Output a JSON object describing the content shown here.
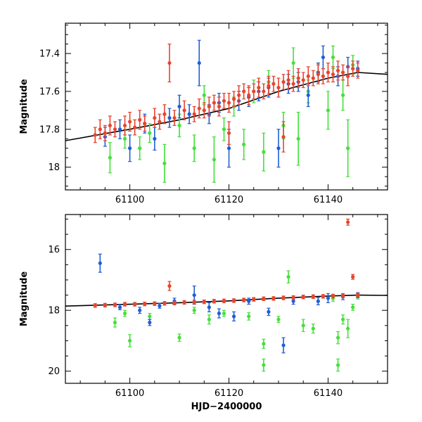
{
  "chart_data": [
    {
      "type": "scatter",
      "panel": "top",
      "title": "",
      "xlabel": "",
      "ylabel": "Magnitude",
      "xlim": [
        61087,
        61152
      ],
      "ylim": [
        18.12,
        17.24
      ],
      "x_ticks": [
        61100,
        61120,
        61140
      ],
      "x_tick_labels": [
        "61100",
        "61120",
        "61140"
      ],
      "y_ticks": [
        17.4,
        17.6,
        17.8,
        18.0
      ],
      "y_tick_labels": [
        "17.4",
        "17.6",
        "17.8",
        "18"
      ],
      "colors": {
        "red": "#e8442e",
        "blue": "#1f5fd6",
        "green": "#44e03a",
        "line": "#000000"
      },
      "model_line": {
        "x": [
          61087,
          61100,
          61110,
          61120,
          61130,
          61140,
          61146,
          61152
        ],
        "y": [
          17.86,
          17.8,
          17.75,
          17.69,
          17.6,
          17.53,
          17.5,
          17.51
        ]
      },
      "series": [
        {
          "name": "green",
          "color": "#44e03a",
          "points": [
            [
              61096,
              17.95,
              0.08
            ],
            [
              61099,
              17.85,
              0.05
            ],
            [
              61102,
              17.9,
              0.06
            ],
            [
              61104,
              17.82,
              0.05
            ],
            [
              61107,
              17.98,
              0.1
            ],
            [
              61110,
              17.78,
              0.06
            ],
            [
              61113,
              17.9,
              0.07
            ],
            [
              61115,
              17.62,
              0.05
            ],
            [
              61117,
              17.96,
              0.12
            ],
            [
              61119,
              17.8,
              0.06
            ],
            [
              61121,
              17.68,
              0.05
            ],
            [
              61123,
              17.88,
              0.08
            ],
            [
              61125,
              17.6,
              0.06
            ],
            [
              61127,
              17.92,
              0.1
            ],
            [
              61128,
              17.55,
              0.06
            ],
            [
              61131,
              17.78,
              0.07
            ],
            [
              61133,
              17.45,
              0.08
            ],
            [
              61134,
              17.85,
              0.14
            ],
            [
              61136,
              17.6,
              0.06
            ],
            [
              61138,
              17.5,
              0.05
            ],
            [
              61140,
              17.7,
              0.1
            ],
            [
              61141,
              17.42,
              0.06
            ],
            [
              61143,
              17.62,
              0.08
            ],
            [
              61144,
              17.9,
              0.15
            ],
            [
              61145,
              17.46,
              0.05
            ]
          ]
        },
        {
          "name": "blue",
          "color": "#1f5fd6",
          "points": [
            [
              61095,
              17.84,
              0.05
            ],
            [
              61098,
              17.8,
              0.05
            ],
            [
              61100,
              17.9,
              0.07
            ],
            [
              61103,
              17.77,
              0.05
            ],
            [
              61105,
              17.85,
              0.06
            ],
            [
              61108,
              17.74,
              0.05
            ],
            [
              61110,
              17.68,
              0.06
            ],
            [
              61112,
              17.72,
              0.05
            ],
            [
              61114,
              17.45,
              0.12
            ],
            [
              61116,
              17.72,
              0.05
            ],
            [
              61118,
              17.66,
              0.05
            ],
            [
              61120,
              17.9,
              0.1
            ],
            [
              61122,
              17.65,
              0.05
            ],
            [
              61124,
              17.63,
              0.05
            ],
            [
              61126,
              17.6,
              0.05
            ],
            [
              61128,
              17.58,
              0.05
            ],
            [
              61130,
              17.9,
              0.1
            ],
            [
              61132,
              17.56,
              0.05
            ],
            [
              61134,
              17.55,
              0.05
            ],
            [
              61136,
              17.62,
              0.06
            ],
            [
              61138,
              17.5,
              0.05
            ],
            [
              61139,
              17.42,
              0.06
            ],
            [
              61142,
              17.52,
              0.05
            ],
            [
              61144,
              17.47,
              0.05
            ],
            [
              61146,
              17.48,
              0.04
            ]
          ]
        },
        {
          "name": "red",
          "color": "#e8442e",
          "points": [
            [
              61093,
              17.83,
              0.04
            ],
            [
              61094,
              17.8,
              0.05
            ],
            [
              61095,
              17.82,
              0.04
            ],
            [
              61096,
              17.78,
              0.05
            ],
            [
              61097,
              17.8,
              0.04
            ],
            [
              61099,
              17.78,
              0.05
            ],
            [
              61100,
              17.76,
              0.05
            ],
            [
              61101,
              17.79,
              0.04
            ],
            [
              61102,
              17.75,
              0.05
            ],
            [
              61103,
              17.77,
              0.04
            ],
            [
              61105,
              17.74,
              0.05
            ],
            [
              61106,
              17.76,
              0.04
            ],
            [
              61107,
              17.72,
              0.05
            ],
            [
              61108,
              17.45,
              0.1
            ],
            [
              61109,
              17.74,
              0.04
            ],
            [
              61111,
              17.7,
              0.05
            ],
            [
              61113,
              17.72,
              0.04
            ],
            [
              61114,
              17.69,
              0.05
            ],
            [
              61115,
              17.7,
              0.04
            ],
            [
              61116,
              17.68,
              0.05
            ],
            [
              61117,
              17.66,
              0.04
            ],
            [
              61118,
              17.68,
              0.05
            ],
            [
              61119,
              17.65,
              0.04
            ],
            [
              61120,
              17.66,
              0.05
            ],
            [
              61121,
              17.64,
              0.04
            ],
            [
              61122,
              17.62,
              0.05
            ],
            [
              61123,
              17.6,
              0.04
            ],
            [
              61124,
              17.62,
              0.05
            ],
            [
              61125,
              17.6,
              0.04
            ],
            [
              61126,
              17.58,
              0.05
            ],
            [
              61127,
              17.6,
              0.04
            ],
            [
              61128,
              17.57,
              0.05
            ],
            [
              61129,
              17.56,
              0.04
            ],
            [
              61130,
              17.58,
              0.05
            ],
            [
              61131,
              17.55,
              0.04
            ],
            [
              61132,
              17.54,
              0.05
            ],
            [
              61133,
              17.56,
              0.04
            ],
            [
              61134,
              17.53,
              0.05
            ],
            [
              61135,
              17.54,
              0.04
            ],
            [
              61136,
              17.52,
              0.05
            ],
            [
              61137,
              17.53,
              0.04
            ],
            [
              61138,
              17.51,
              0.05
            ],
            [
              61139,
              17.52,
              0.04
            ],
            [
              61140,
              17.5,
              0.05
            ],
            [
              61141,
              17.51,
              0.04
            ],
            [
              61142,
              17.49,
              0.05
            ],
            [
              61143,
              17.5,
              0.04
            ],
            [
              61144,
              17.52,
              0.05
            ],
            [
              61145,
              17.48,
              0.04
            ],
            [
              61146,
              17.49,
              0.04
            ],
            [
              61120,
              17.82,
              0.06
            ],
            [
              61131,
              17.84,
              0.08
            ]
          ]
        }
      ]
    },
    {
      "type": "scatter",
      "panel": "bottom",
      "title": "",
      "xlabel": "HJD−2400000",
      "ylabel": "Magnitude",
      "xlim": [
        61087,
        61152
      ],
      "ylim": [
        20.4,
        14.85
      ],
      "x_ticks": [
        61100,
        61120,
        61140
      ],
      "x_tick_labels": [
        "61100",
        "61120",
        "61140"
      ],
      "y_ticks": [
        16,
        18,
        20
      ],
      "y_tick_labels": [
        "16",
        "18",
        "20"
      ],
      "colors": {
        "red": "#e8442e",
        "blue": "#1f5fd6",
        "green": "#44e03a",
        "line": "#000000"
      },
      "model_line": {
        "x": [
          61087,
          61100,
          61110,
          61120,
          61130,
          61140,
          61146,
          61152
        ],
        "y": [
          17.86,
          17.8,
          17.75,
          17.69,
          17.6,
          17.53,
          17.5,
          17.51
        ]
      },
      "series": [
        {
          "name": "green",
          "color": "#44e03a",
          "points": [
            [
              61097,
              18.4,
              0.15
            ],
            [
              61099,
              18.1,
              0.1
            ],
            [
              61100,
              19.0,
              0.2
            ],
            [
              61104,
              18.2,
              0.1
            ],
            [
              61110,
              18.9,
              0.12
            ],
            [
              61113,
              18.0,
              0.1
            ],
            [
              61116,
              18.3,
              0.15
            ],
            [
              61119,
              18.1,
              0.1
            ],
            [
              61124,
              18.2,
              0.12
            ],
            [
              61127,
              19.8,
              0.2
            ],
            [
              61127,
              19.1,
              0.15
            ],
            [
              61130,
              18.3,
              0.1
            ],
            [
              61132,
              16.9,
              0.2
            ],
            [
              61135,
              18.5,
              0.2
            ],
            [
              61137,
              18.6,
              0.15
            ],
            [
              61141,
              17.6,
              0.1
            ],
            [
              61142,
              18.9,
              0.2
            ],
            [
              61142,
              19.8,
              0.2
            ],
            [
              61143,
              18.3,
              0.15
            ],
            [
              61144,
              18.6,
              0.3
            ],
            [
              61145,
              17.9,
              0.1
            ],
            [
              61146,
              17.55,
              0.08
            ]
          ]
        },
        {
          "name": "blue",
          "color": "#1f5fd6",
          "points": [
            [
              61094,
              16.45,
              0.3
            ],
            [
              61098,
              17.9,
              0.08
            ],
            [
              61102,
              18.0,
              0.1
            ],
            [
              61104,
              18.4,
              0.1
            ],
            [
              61106,
              17.85,
              0.08
            ],
            [
              61109,
              17.7,
              0.1
            ],
            [
              61113,
              17.5,
              0.3
            ],
            [
              61116,
              17.9,
              0.15
            ],
            [
              61118,
              18.1,
              0.15
            ],
            [
              61121,
              18.2,
              0.15
            ],
            [
              61124,
              17.7,
              0.1
            ],
            [
              61128,
              18.05,
              0.12
            ],
            [
              61131,
              19.15,
              0.25
            ],
            [
              61133,
              17.7,
              0.1
            ],
            [
              61138,
              17.7,
              0.12
            ],
            [
              61140,
              17.6,
              0.15
            ],
            [
              61143,
              17.55,
              0.1
            ],
            [
              61146,
              17.5,
              0.08
            ]
          ]
        },
        {
          "name": "red",
          "color": "#e8442e",
          "points": [
            [
              61093,
              17.84,
              0.06
            ],
            [
              61095,
              17.83,
              0.06
            ],
            [
              61097,
              17.82,
              0.06
            ],
            [
              61099,
              17.8,
              0.06
            ],
            [
              61101,
              17.8,
              0.06
            ],
            [
              61103,
              17.79,
              0.06
            ],
            [
              61105,
              17.78,
              0.06
            ],
            [
              61107,
              17.77,
              0.06
            ],
            [
              61108,
              17.2,
              0.15
            ],
            [
              61109,
              17.76,
              0.06
            ],
            [
              61111,
              17.74,
              0.06
            ],
            [
              61113,
              17.73,
              0.06
            ],
            [
              61115,
              17.72,
              0.06
            ],
            [
              61117,
              17.7,
              0.06
            ],
            [
              61119,
              17.69,
              0.06
            ],
            [
              61121,
              17.68,
              0.06
            ],
            [
              61123,
              17.66,
              0.06
            ],
            [
              61125,
              17.64,
              0.06
            ],
            [
              61127,
              17.62,
              0.06
            ],
            [
              61129,
              17.61,
              0.06
            ],
            [
              61131,
              17.59,
              0.06
            ],
            [
              61133,
              17.58,
              0.06
            ],
            [
              61135,
              17.56,
              0.06
            ],
            [
              61137,
              17.55,
              0.06
            ],
            [
              61139,
              17.54,
              0.06
            ],
            [
              61141,
              17.53,
              0.06
            ],
            [
              61143,
              17.52,
              0.06
            ],
            [
              61144,
              15.1,
              0.1
            ],
            [
              61145,
              16.9,
              0.08
            ],
            [
              61146,
              17.5,
              0.06
            ]
          ]
        }
      ]
    }
  ]
}
